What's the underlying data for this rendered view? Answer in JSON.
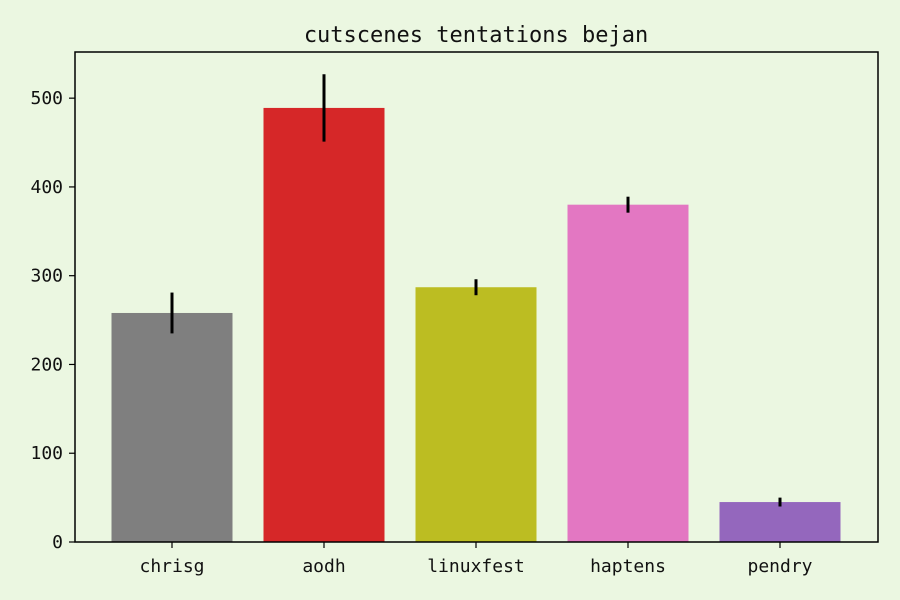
{
  "chart_data": {
    "type": "bar",
    "title": "cutscenes tentations bejan",
    "xlabel": "",
    "ylabel": "",
    "categories": [
      "chrisg",
      "aodh",
      "linuxfest",
      "haptens",
      "pendry"
    ],
    "values": [
      258,
      489,
      287,
      380,
      45
    ],
    "errors": [
      23,
      38,
      9,
      9,
      5
    ],
    "colors": [
      "#7f7f7f",
      "#d62728",
      "#bcbd22",
      "#e377c2",
      "#9467bd"
    ],
    "ylim": [
      0,
      552
    ],
    "yticks": [
      0,
      100,
      200,
      300,
      400,
      500
    ],
    "grid": false,
    "legend": false
  }
}
